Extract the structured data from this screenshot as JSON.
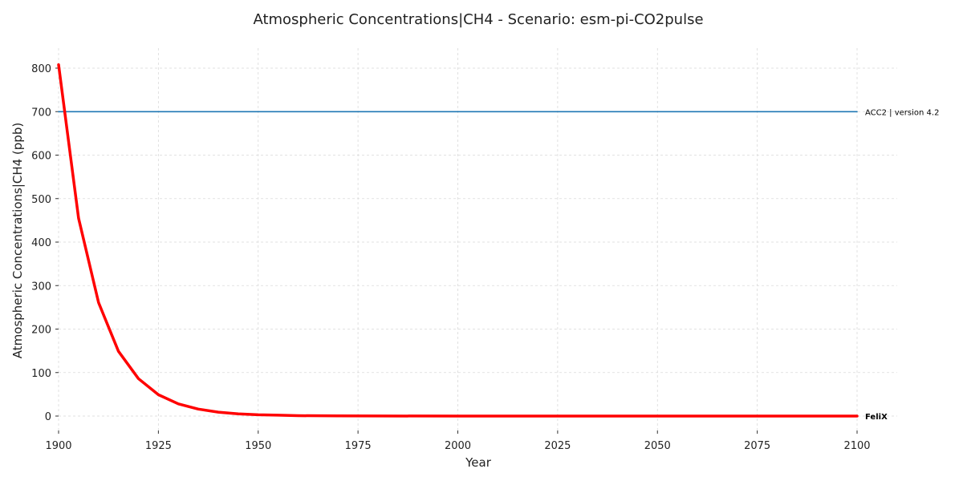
{
  "chart_data": {
    "type": "line",
    "title": "Atmospheric Concentrations|CH4 - Scenario: esm-pi-CO2pulse",
    "xlabel": "Year",
    "ylabel": "Atmospheric Concentrations|CH4 (ppb)",
    "xlim": [
      1900,
      2110
    ],
    "ylim": [
      -35,
      850
    ],
    "xticks": [
      1900,
      1925,
      1950,
      1975,
      2000,
      2025,
      2050,
      2075,
      2100
    ],
    "yticks": [
      0,
      100,
      200,
      300,
      400,
      500,
      600,
      700,
      800
    ],
    "grid": true,
    "legend": "none",
    "series": [
      {
        "name": "ACC2 | version 4.2",
        "color": "#1f77b4",
        "x": [
          1900,
          2100
        ],
        "y": [
          700,
          700
        ]
      },
      {
        "name": "FeliX",
        "color": "#ff0000",
        "x": [
          1900,
          1905,
          1910,
          1915,
          1920,
          1925,
          1930,
          1935,
          1940,
          1945,
          1950,
          1955,
          1960,
          1970,
          1980,
          2000,
          2025,
          2050,
          2075,
          2100
        ],
        "y": [
          808,
          455,
          261,
          149,
          86,
          49,
          28,
          16,
          9,
          5,
          3,
          2,
          1,
          0.3,
          0.1,
          0,
          0,
          0,
          0,
          0
        ]
      }
    ]
  }
}
